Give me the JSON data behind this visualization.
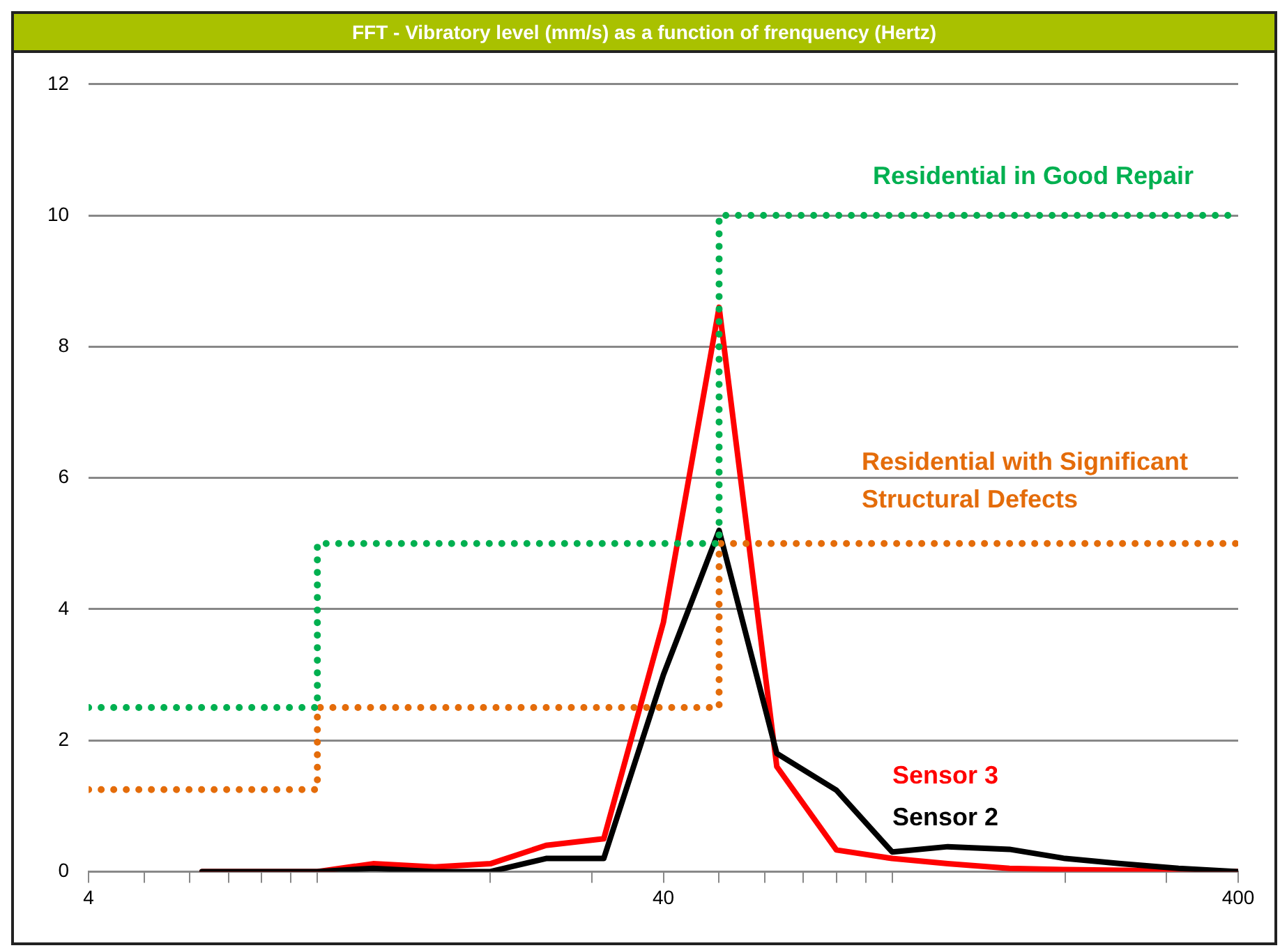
{
  "chart_data": {
    "type": "line",
    "title": "FFT - Vibratory level (mm/s) as a function of frenquency (Hertz)",
    "log": "x",
    "grid": "y",
    "legend": false,
    "marker": "none",
    "xlim": [
      4,
      400
    ],
    "xticks": [
      4,
      {
        "value": 5,
        "label": null
      },
      {
        "value": 6,
        "label": null
      },
      {
        "value": 7,
        "label": null
      },
      {
        "value": 8,
        "label": null
      },
      {
        "value": 9,
        "label": null
      },
      {
        "value": 10,
        "label": null
      },
      {
        "value": 20,
        "label": null
      },
      {
        "value": 30,
        "label": null
      },
      40,
      {
        "value": 50,
        "label": null
      },
      {
        "value": 60,
        "label": null
      },
      {
        "value": 70,
        "label": null
      },
      {
        "value": 80,
        "label": null
      },
      {
        "value": 90,
        "label": null
      },
      {
        "value": 100,
        "label": null
      },
      {
        "value": 200,
        "label": null
      },
      {
        "value": 300,
        "label": null
      },
      400
    ],
    "ylim": [
      0,
      12
    ],
    "yticks": [
      0,
      2,
      4,
      6,
      8,
      10,
      12
    ],
    "series": [
      {
        "name": "Residential in Good Repair",
        "type": "step",
        "line_style": "dotted",
        "color": "#00b050",
        "x": [
          4,
          10,
          50,
          400
        ],
        "values": [
          2.5,
          5,
          10,
          10
        ]
      },
      {
        "name": "Residential with Significant Structural Defects",
        "type": "step",
        "line_style": "dotted",
        "color": "#e46c0a",
        "x": [
          4,
          10,
          50,
          400
        ],
        "values": [
          1.25,
          2.5,
          5,
          5
        ]
      },
      {
        "name": "Sensor 2",
        "type": "line",
        "line_style": "solid",
        "color": "#000000",
        "x": [
          6.3,
          8,
          10,
          12.5,
          16,
          20,
          25,
          31.5,
          40,
          50,
          63,
          80,
          100,
          125,
          160,
          200,
          250,
          315,
          400
        ],
        "values": [
          0,
          0,
          0,
          0.05,
          0,
          0,
          0.2,
          0.2,
          3.0,
          5.2,
          1.8,
          1.24,
          0.3,
          0.38,
          0.34,
          0.2,
          0.12,
          0.05,
          0
        ]
      },
      {
        "name": "Sensor 3",
        "type": "line",
        "line_style": "solid",
        "color": "#ff0000",
        "x": [
          6.3,
          8,
          10,
          12.5,
          16,
          20,
          25,
          31.5,
          40,
          50,
          63,
          80,
          100,
          125,
          160,
          200,
          250,
          315,
          400
        ],
        "values": [
          0,
          0,
          0,
          0.12,
          0.07,
          0.12,
          0.4,
          0.5,
          3.8,
          8.6,
          1.6,
          0.33,
          0.2,
          0.12,
          0.05,
          0.03,
          0.02,
          0.01,
          0
        ]
      }
    ]
  }
}
